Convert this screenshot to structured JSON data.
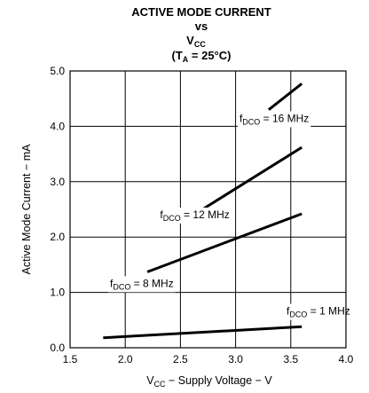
{
  "chart_data": {
    "type": "line",
    "title": {
      "line1": "ACTIVE MODE CURRENT",
      "line2": "vs",
      "line3_main": "V",
      "line3_sub": "CC",
      "line4_open": "(T",
      "line4_sub": "A",
      "line4_rest": " = 25°C)"
    },
    "xlabel": {
      "main": "V",
      "sub": "CC",
      "rest": " − Supply Voltage − V"
    },
    "ylabel": "Active Mode Current − mA",
    "xlim": [
      1.5,
      4.0
    ],
    "ylim": [
      0.0,
      5.0
    ],
    "x_ticks": [
      1.5,
      2.0,
      2.5,
      3.0,
      3.5,
      4.0
    ],
    "x_tick_labels": [
      "1.5",
      "2.0",
      "2.5",
      "3.0",
      "3.5",
      "4.0"
    ],
    "y_ticks": [
      0.0,
      1.0,
      2.0,
      3.0,
      4.0,
      5.0
    ],
    "y_tick_labels": [
      "0.0",
      "1.0",
      "2.0",
      "3.0",
      "4.0",
      "5.0"
    ],
    "grid": true,
    "series": [
      {
        "name": "fDCO = 1 MHz",
        "label_main": "f",
        "label_sub": "DCO",
        "label_rest": " = 1 MHz",
        "x": [
          1.8,
          3.6
        ],
        "y": [
          0.18,
          0.38
        ],
        "label_at": [
          3.75,
          0.6
        ]
      },
      {
        "name": "fDCO = 8 MHz",
        "label_main": "f",
        "label_sub": "DCO",
        "label_rest": " = 8 MHz",
        "x": [
          2.2,
          3.6
        ],
        "y": [
          1.37,
          2.42
        ],
        "label_at": [
          2.15,
          1.1
        ]
      },
      {
        "name": "fDCO = 12 MHz",
        "label_main": "f",
        "label_sub": "DCO",
        "label_rest": " = 12 MHz",
        "x": [
          2.7,
          3.6
        ],
        "y": [
          2.5,
          3.62
        ],
        "label_at": [
          2.63,
          2.34
        ]
      },
      {
        "name": "fDCO = 16 MHz",
        "label_main": "f",
        "label_sub": "DCO",
        "label_rest": " = 16 MHz",
        "x": [
          3.3,
          3.6
        ],
        "y": [
          4.3,
          4.77
        ],
        "label_at": [
          3.35,
          4.08
        ]
      }
    ]
  }
}
